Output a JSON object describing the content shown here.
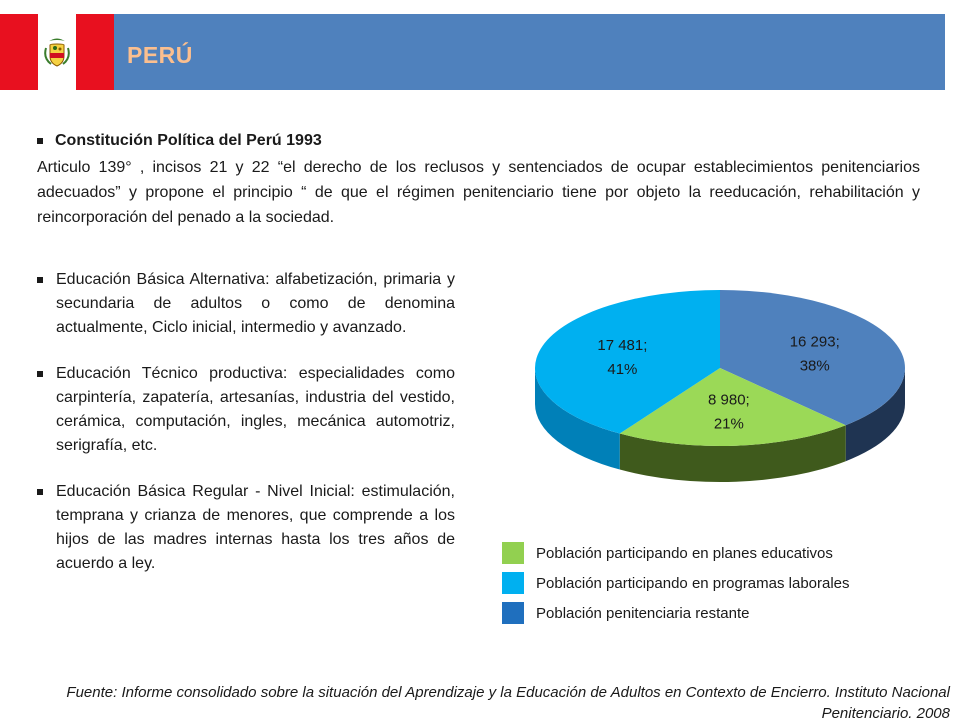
{
  "header": {
    "title": "PERÚ",
    "colors": {
      "bar": "#4f81bd",
      "flag_red": "#e8101f",
      "title": "#fbbf8f"
    }
  },
  "section1": {
    "heading": "Constitución  Política del Perú 1993",
    "body": "Articulo 139° , incisos 21 y 22   “el derecho de los reclusos y sentenciados de ocupar establecimientos penitenciarios adecuados”  y propone el principio  “ de que el régimen penitenciario tiene por objeto la reeducación, rehabilitación y reincorporación del penado a la sociedad."
  },
  "list": [
    {
      "text": "Educación Básica Alternativa: alfabetización, primaria y secundaria de adultos o como de denomina actualmente, Ciclo inicial, intermedio y avanzado."
    },
    {
      "text": "Educación Técnico productiva: especialidades como carpintería, zapatería, artesanías, industria del vestido, cerámica, computación, ingles, mecánica automotriz, serigrafía, etc."
    },
    {
      "text": "Educación Básica Regular - Nivel Inicial:   estimulación, temprana y crianza de menores, que comprende a los hijos de las madres internas hasta los tres años de acuerdo a ley."
    }
  ],
  "chart_data": {
    "type": "pie",
    "style": "3d-pie",
    "slices": [
      {
        "name": "Población penitenciaria restante",
        "value": 16293,
        "percent": 38,
        "label_line1": "16 293;",
        "label_line2": "38%",
        "color": "#4f81bd",
        "side_color": "#1f3452",
        "legend_color": "#1f6fbe"
      },
      {
        "name": "Población participando en planes educativos",
        "value": 8980,
        "percent": 21,
        "label_line1": "8 980;",
        "label_line2": "21%",
        "color": "#9bd957",
        "side_color": "#3f5a1c",
        "legend_color": "#92d050"
      },
      {
        "name": "Población participando en programas laborales",
        "value": 17481,
        "percent": 41,
        "label_line1": "17 481;",
        "label_line2": "41%",
        "color": "#00b0f0",
        "side_color": "#0080b8",
        "legend_color": "#00b0f0"
      }
    ],
    "legend_order": [
      1,
      2,
      0
    ],
    "legend_placement": "bottom"
  },
  "source": "Fuente: Informe consolidado sobre la situación del Aprendizaje y la Educación de Adultos en Contexto de Encierro. Instituto Nacional Penitenciario. 2008"
}
